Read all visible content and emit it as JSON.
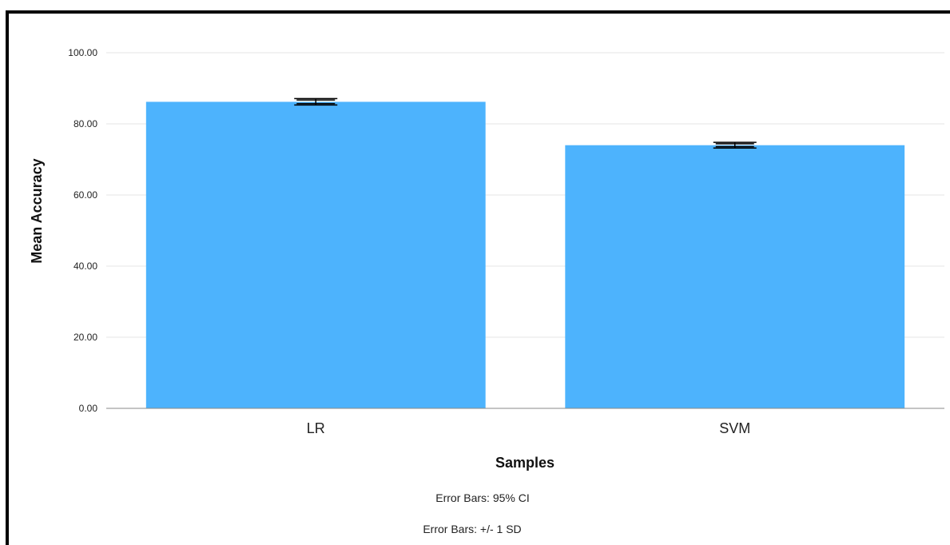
{
  "colors": {
    "bar": "#4db3fd",
    "grid": "#e6e6e6",
    "axis": "#888888",
    "error_bar": "#000000"
  },
  "chart_data": {
    "type": "bar",
    "categories": [
      "LR",
      "SVM"
    ],
    "values": [
      86.2,
      74.0
    ],
    "error_ci95": [
      [
        85.7,
        86.7
      ],
      [
        73.6,
        74.4
      ]
    ],
    "error_sd": [
      [
        85.3,
        87.1
      ],
      [
        73.2,
        74.8
      ]
    ],
    "xlabel": "Samples",
    "ylabel": "Mean Accuracy",
    "ylim": [
      0,
      100
    ],
    "yticks": [
      0,
      20,
      40,
      60,
      80,
      100
    ],
    "ytick_labels": [
      "0.00",
      "20.00",
      "40.00",
      "60.00",
      "80.00",
      "100.00"
    ],
    "grid": true,
    "notes": [
      "Error Bars: 95% CI",
      "Error Bars: +/- 1 SD"
    ]
  }
}
